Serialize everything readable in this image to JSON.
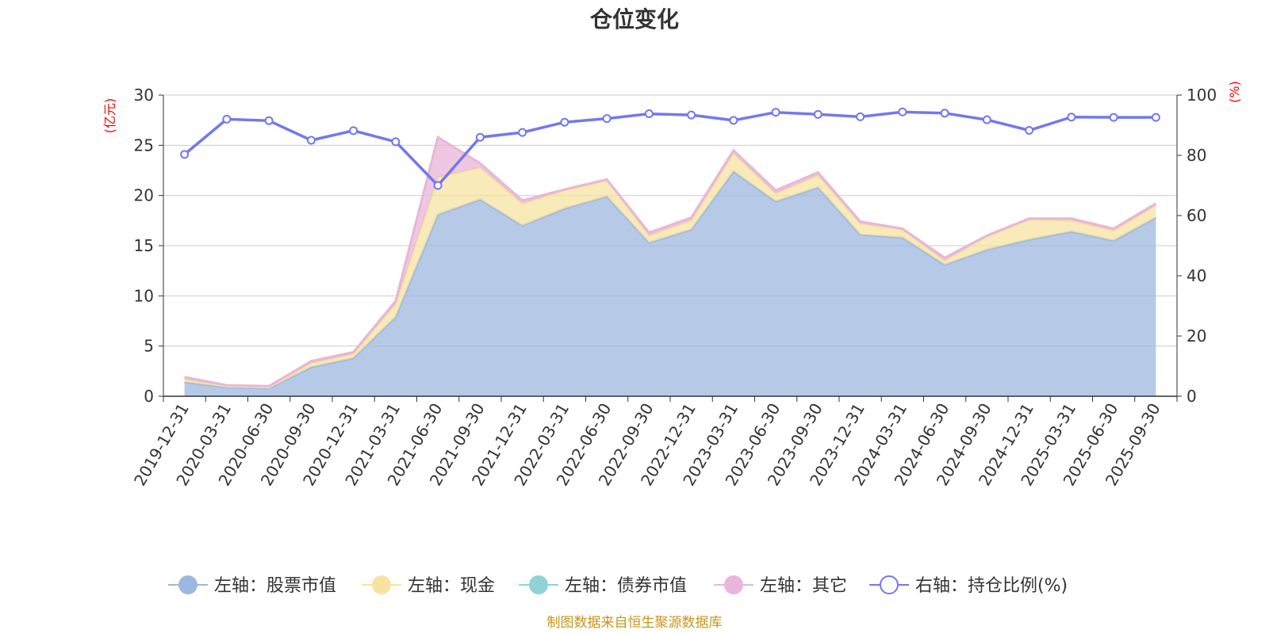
{
  "chart_data": {
    "type": "area",
    "title": "仓位变化",
    "x": [
      "2019-12-31",
      "2020-03-31",
      "2020-06-30",
      "2020-09-30",
      "2020-12-31",
      "2021-03-31",
      "2021-06-30",
      "2021-09-30",
      "2021-12-31",
      "2022-03-31",
      "2022-06-30",
      "2022-09-30",
      "2022-12-31",
      "2023-03-31",
      "2023-06-30",
      "2023-09-30",
      "2023-12-31",
      "2024-03-31",
      "2024-06-30",
      "2024-09-30",
      "2024-12-31",
      "2025-03-31",
      "2025-06-30",
      "2025-09-30"
    ],
    "left_axis": {
      "unit_label": "(亿元)",
      "ylim": [
        0,
        30
      ],
      "ticks": [
        0,
        5,
        10,
        15,
        20,
        25,
        30
      ]
    },
    "right_axis": {
      "unit_label": "(%)",
      "ylim": [
        0,
        100
      ],
      "ticks": [
        0,
        20,
        40,
        60,
        80,
        100
      ]
    },
    "series": [
      {
        "name": "左轴：股票市值",
        "axis": "left",
        "type": "area",
        "color": "#9db8e0",
        "values": [
          1.4,
          0.9,
          0.8,
          2.9,
          3.8,
          7.9,
          18.1,
          19.6,
          17.0,
          18.7,
          19.9,
          15.3,
          16.6,
          22.4,
          19.4,
          20.8,
          16.1,
          15.8,
          13.1,
          14.6,
          15.6,
          16.4,
          15.5,
          17.8
        ]
      },
      {
        "name": "左轴：现金",
        "axis": "left",
        "type": "area",
        "color": "#f7e3a1",
        "values": [
          0.3,
          0.1,
          0.1,
          0.4,
          0.4,
          1.3,
          3.7,
          3.2,
          2.2,
          1.8,
          1.6,
          0.7,
          0.9,
          1.8,
          0.8,
          1.2,
          1.1,
          0.8,
          0.4,
          1.3,
          2.0,
          1.1,
          1.0,
          1.2
        ]
      },
      {
        "name": "左轴：债券市值",
        "axis": "left",
        "type": "area",
        "color": "#8fd3d6",
        "values": [
          0,
          0,
          0,
          0,
          0,
          0,
          0,
          0,
          0,
          0,
          0,
          0,
          0,
          0,
          0,
          0,
          0,
          0,
          0,
          0,
          0,
          0,
          0,
          0
        ]
      },
      {
        "name": "左轴：其它",
        "axis": "left",
        "type": "area",
        "color": "#e8b6d8",
        "values": [
          0.2,
          0.1,
          0.1,
          0.2,
          0.2,
          0.3,
          4.0,
          0.4,
          0.3,
          0.1,
          0.1,
          0.3,
          0.3,
          0.3,
          0.3,
          0.3,
          0.2,
          0.1,
          0.3,
          0.1,
          0.1,
          0.2,
          0.2,
          0.2
        ]
      },
      {
        "name": "右轴：持仓比例(%)",
        "axis": "right",
        "type": "line",
        "color": "#7378ee",
        "values": [
          80.3,
          92.0,
          91.5,
          85.0,
          88.2,
          84.5,
          70.0,
          86.0,
          87.6,
          91.0,
          92.2,
          93.8,
          93.4,
          91.6,
          94.3,
          93.6,
          92.8,
          94.4,
          94.0,
          91.8,
          88.3,
          92.7,
          92.6,
          92.6
        ]
      }
    ],
    "grid": true,
    "legend_position": "bottom",
    "source_note": "制图数据来自恒生聚源数据库",
    "source_color": "#c8951c",
    "axis_unit_color": "#ff0000"
  }
}
